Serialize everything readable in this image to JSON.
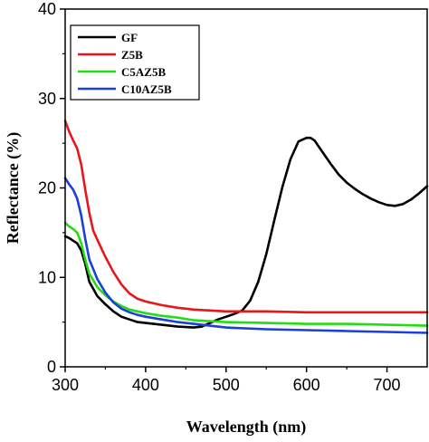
{
  "chart_data": {
    "type": "line",
    "title": "",
    "xlabel": "Wavelength (nm)",
    "ylabel": "Reflectance (%)",
    "xlim": [
      300,
      750
    ],
    "ylim": [
      0,
      40
    ],
    "xticks": [
      "300",
      "400",
      "500",
      "600",
      "700"
    ],
    "yticks": [
      "0",
      "10",
      "20",
      "30",
      "40"
    ],
    "grid": false,
    "legend_position": "top-left",
    "series": [
      {
        "name": "GF",
        "color": "#000000",
        "x": [
          300,
          305,
          310,
          315,
          320,
          325,
          330,
          340,
          350,
          360,
          370,
          380,
          390,
          400,
          420,
          440,
          460,
          470,
          480,
          490,
          500,
          510,
          520,
          530,
          540,
          550,
          560,
          570,
          580,
          590,
          600,
          605,
          610,
          620,
          630,
          640,
          650,
          660,
          670,
          680,
          690,
          700,
          710,
          720,
          730,
          740,
          750
        ],
        "y": [
          14.6,
          14.4,
          14.1,
          13.8,
          13.0,
          11.5,
          9.5,
          7.9,
          7.0,
          6.2,
          5.6,
          5.3,
          5.0,
          4.9,
          4.7,
          4.5,
          4.4,
          4.5,
          4.9,
          5.3,
          5.6,
          5.9,
          6.3,
          7.4,
          9.5,
          12.6,
          16.4,
          20.1,
          23.2,
          25.2,
          25.6,
          25.6,
          25.3,
          24.0,
          22.7,
          21.5,
          20.6,
          19.9,
          19.3,
          18.8,
          18.4,
          18.1,
          18.0,
          18.2,
          18.7,
          19.4,
          20.2
        ]
      },
      {
        "name": "Z5B",
        "color": "#e8161b",
        "x": [
          300,
          305,
          310,
          315,
          320,
          325,
          330,
          335,
          340,
          350,
          360,
          370,
          380,
          390,
          400,
          420,
          440,
          460,
          480,
          500,
          550,
          600,
          650,
          700,
          750
        ],
        "y": [
          27.5,
          26.3,
          25.3,
          24.4,
          22.6,
          19.8,
          17.2,
          15.2,
          14.2,
          12.3,
          10.6,
          9.2,
          8.2,
          7.6,
          7.3,
          6.9,
          6.6,
          6.4,
          6.3,
          6.2,
          6.2,
          6.1,
          6.1,
          6.1,
          6.1
        ]
      },
      {
        "name": "C5AZ5B",
        "color": "#22dd11",
        "x": [
          300,
          305,
          310,
          315,
          320,
          325,
          330,
          340,
          350,
          360,
          370,
          380,
          390,
          400,
          420,
          440,
          460,
          480,
          500,
          550,
          600,
          650,
          700,
          750
        ],
        "y": [
          16.1,
          15.7,
          15.4,
          15.0,
          13.8,
          12.0,
          10.4,
          8.9,
          8.0,
          7.3,
          6.8,
          6.4,
          6.2,
          6.0,
          5.7,
          5.5,
          5.2,
          5.1,
          5.0,
          4.9,
          4.8,
          4.8,
          4.7,
          4.6
        ]
      },
      {
        "name": "C10AZ5B",
        "color": "#1a3fdd",
        "x": [
          300,
          305,
          310,
          315,
          320,
          325,
          330,
          340,
          350,
          360,
          370,
          380,
          390,
          400,
          420,
          440,
          460,
          480,
          500,
          550,
          600,
          650,
          700,
          750
        ],
        "y": [
          21.1,
          20.4,
          19.8,
          18.8,
          16.9,
          14.3,
          12.0,
          9.8,
          8.3,
          7.2,
          6.5,
          6.1,
          5.8,
          5.6,
          5.3,
          5.0,
          4.8,
          4.6,
          4.4,
          4.2,
          4.1,
          4.0,
          3.9,
          3.8
        ]
      }
    ]
  }
}
